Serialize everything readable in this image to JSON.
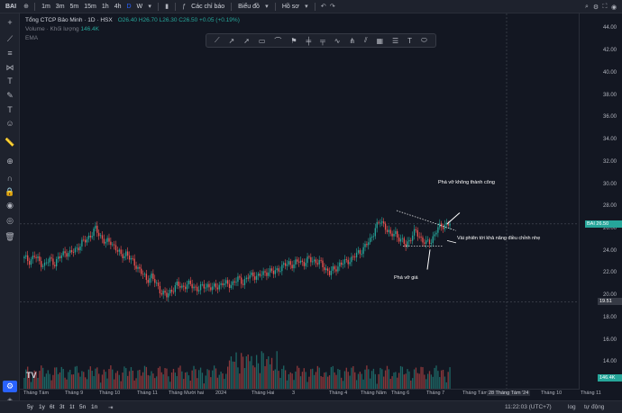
{
  "topbar": {
    "symbol": "BAI",
    "intervals": [
      "1m",
      "3m",
      "5m",
      "15m",
      "1h",
      "4h",
      "D",
      "W"
    ],
    "active_interval": "D",
    "indicators_label": "Các chỉ báo",
    "chart_label": "Biểu đồ",
    "profile_label": "Hồ sơ"
  },
  "legend": {
    "title": "Tổng CTCP Bảo Minh · 1D · HSX",
    "ohlc": "O26.40 H26.70 L26.30 C26.50 +0.05 (+0.19%)",
    "volume_label": "Volume · Khối lượng",
    "volume_value": "146.4K",
    "ema_label": "EMA"
  },
  "yaxis": {
    "ticks": [
      "44.00",
      "42.00",
      "40.00",
      "38.00",
      "36.00",
      "34.00",
      "32.00",
      "30.00",
      "28.00",
      "26.00",
      "24.00",
      "22.00",
      "20.00",
      "18.00",
      "16.00",
      "14.00"
    ],
    "price_badge": {
      "symbol": "BAI",
      "value": "26.50"
    },
    "low_badge": "19.51",
    "vol_badge": "146.4K"
  },
  "xaxis": {
    "ticks": [
      "Tháng Tám",
      "Tháng 9",
      "Tháng 10",
      "Tháng 11",
      "Tháng Mười hai",
      "2024",
      "Tháng Hai",
      "3",
      "Tháng 4",
      "Tháng Năm",
      "Tháng 6",
      "Tháng 7",
      "Tháng Tám",
      "Tháng 10",
      "Tháng 11"
    ],
    "date_badge": "28 Tháng Tám '24",
    "time": "11:22:03 (UTC+7)",
    "log": "log",
    "auto": "tự động"
  },
  "ranges": [
    "5y",
    "1y",
    "6t",
    "3t",
    "1t",
    "5n",
    "1n"
  ],
  "annotations": {
    "breakout_fail": "Phá vỡ không thành công",
    "correction": "Vài phiên tới khả năng điều chỉnh nhẹ",
    "breakdown": "Phá vỡ giá"
  },
  "colors": {
    "up": "#26a69a",
    "down": "#ef5350",
    "bg": "#131722",
    "accent": "#2962ff"
  },
  "chart_data": {
    "type": "candlestick",
    "y_range": [
      12.5,
      45
    ],
    "close_series": [
      23.4,
      23.2,
      23.6,
      23.1,
      22.8,
      23.3,
      23.0,
      23.5,
      24.0,
      23.8,
      24.2,
      24.6,
      25.0,
      25.5,
      26.0,
      25.4,
      24.8,
      24.9,
      24.3,
      23.6,
      23.9,
      23.2,
      22.8,
      22.1,
      21.5,
      21.8,
      21.0,
      20.4,
      20.0,
      20.6,
      21.0,
      20.8,
      21.1,
      20.9,
      20.7,
      20.8,
      21.0,
      20.7,
      20.9,
      21.2,
      21.0,
      21.2,
      21.5,
      21.3,
      21.7,
      21.9,
      21.8,
      22.0,
      22.3,
      22.1,
      22.5,
      22.7,
      23.0,
      22.8,
      23.2,
      23.0,
      23.3,
      23.2,
      23.0,
      22.6,
      22.1,
      22.4,
      22.9,
      23.0,
      23.3,
      23.6,
      24.0,
      24.5,
      25.0,
      26.2,
      26.7,
      26.3,
      25.4,
      25.7,
      25.0,
      24.6,
      25.3,
      25.8,
      25.2,
      24.7,
      25.0,
      25.9,
      26.3,
      26.5
    ],
    "price_last": 26.5,
    "volume_max_label": "146.4K"
  }
}
